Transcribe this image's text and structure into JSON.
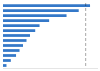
{
  "chart_data": {
    "type": "bar",
    "orientation": "horizontal",
    "categories": [
      null,
      null,
      null,
      null,
      null,
      null,
      null,
      null,
      null,
      null,
      null,
      null,
      null
    ],
    "values": [
      100,
      87,
      73,
      53,
      42,
      37,
      31,
      27,
      23,
      19,
      15,
      9,
      4
    ],
    "color": "#3478c8",
    "xlim": [
      0,
      108
    ],
    "vline": 95,
    "grid": false,
    "tick_labels": false
  }
}
